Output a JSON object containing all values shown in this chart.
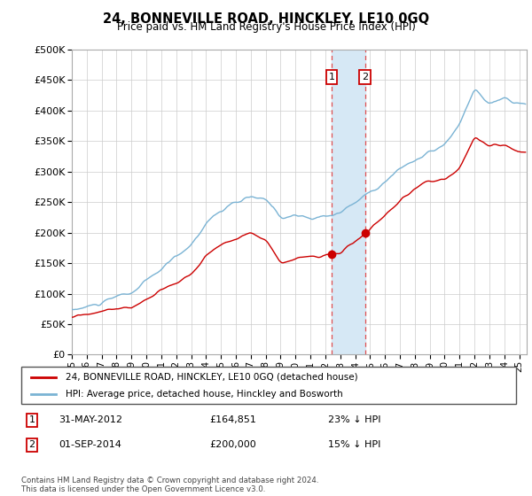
{
  "title": "24, BONNEVILLE ROAD, HINCKLEY, LE10 0GQ",
  "subtitle": "Price paid vs. HM Land Registry's House Price Index (HPI)",
  "legend_line1": "24, BONNEVILLE ROAD, HINCKLEY, LE10 0GQ (detached house)",
  "legend_line2": "HPI: Average price, detached house, Hinckley and Bosworth",
  "transaction1_date": "31-MAY-2012",
  "transaction1_price": "£164,851",
  "transaction1_hpi": "23% ↓ HPI",
  "transaction1_value": 164851,
  "transaction1_year": 2012.417,
  "transaction2_date": "01-SEP-2014",
  "transaction2_price": "£200,000",
  "transaction2_hpi": "15% ↓ HPI",
  "transaction2_value": 200000,
  "transaction2_year": 2014.667,
  "footer": "Contains HM Land Registry data © Crown copyright and database right 2024.\nThis data is licensed under the Open Government Licence v3.0.",
  "hpi_color": "#7ab3d4",
  "price_color": "#cc0000",
  "shading_color": "#d6e8f5",
  "ymin": 0,
  "ymax": 500000,
  "yticks": [
    0,
    50000,
    100000,
    150000,
    200000,
    250000,
    300000,
    350000,
    400000,
    450000,
    500000
  ],
  "xlim_start": 1995.0,
  "xlim_end": 2025.5
}
